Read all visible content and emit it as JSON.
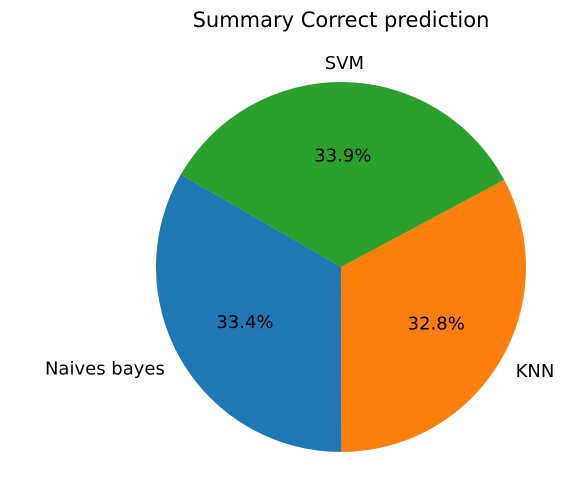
{
  "chart_data": {
    "type": "pie",
    "title": "Summary Correct prediction",
    "labels": [
      "Naives bayes",
      "KNN",
      "SVM"
    ],
    "values": [
      33.4,
      32.8,
      33.9
    ],
    "percent_labels": [
      "33.4%",
      "32.8%",
      "33.9%"
    ],
    "colors": [
      "#1f77b4",
      "#ff7f0e",
      "#2ca02c"
    ],
    "start_angle_deg": 150,
    "direction": "counterclockwise",
    "legend": "none"
  }
}
